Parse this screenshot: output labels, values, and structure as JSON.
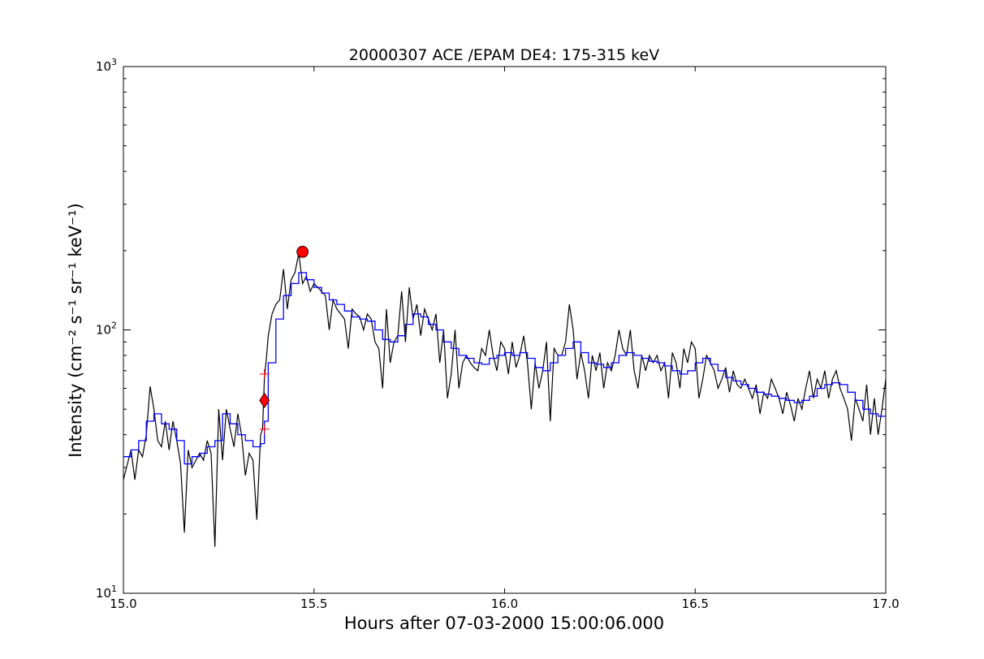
{
  "chart_data": {
    "type": "line",
    "title": "20000307 ACE /EPAM DE4: 175-315 keV",
    "xlabel": "Hours after 07-03-2000 15:00:06.000",
    "ylabel": "Intensity (cm⁻² s⁻¹ sr⁻¹ keV⁻¹)",
    "xlim": [
      15.0,
      17.0
    ],
    "ylim": [
      10,
      1000
    ],
    "yscale": "log",
    "grid": false,
    "x_ticks": [
      "15.0",
      "15.5",
      "16.0",
      "16.5",
      "17.0"
    ],
    "y_ticks": [
      {
        "base": "10",
        "exp": "1",
        "value": 10
      },
      {
        "base": "10",
        "exp": "2",
        "value": 100
      },
      {
        "base": "10",
        "exp": "3",
        "value": 1000
      }
    ],
    "colors": {
      "raw": "#000000",
      "smoothed": "#0000ff",
      "markers": "#ff0000"
    },
    "raw_series": [
      [
        15.0,
        27
      ],
      [
        15.02,
        35
      ],
      [
        15.03,
        27
      ],
      [
        15.04,
        35
      ],
      [
        15.05,
        33
      ],
      [
        15.06,
        40
      ],
      [
        15.07,
        61
      ],
      [
        15.08,
        50
      ],
      [
        15.09,
        38
      ],
      [
        15.1,
        36
      ],
      [
        15.11,
        45
      ],
      [
        15.12,
        35
      ],
      [
        15.13,
        45
      ],
      [
        15.14,
        38
      ],
      [
        15.15,
        31
      ],
      [
        15.16,
        17
      ],
      [
        15.17,
        35
      ],
      [
        15.18,
        30
      ],
      [
        15.2,
        34
      ],
      [
        15.21,
        32
      ],
      [
        15.22,
        38
      ],
      [
        15.23,
        34
      ],
      [
        15.24,
        15
      ],
      [
        15.25,
        50
      ],
      [
        15.26,
        32
      ],
      [
        15.27,
        50
      ],
      [
        15.28,
        42
      ],
      [
        15.29,
        36
      ],
      [
        15.3,
        48
      ],
      [
        15.31,
        40
      ],
      [
        15.32,
        28
      ],
      [
        15.33,
        34
      ],
      [
        15.34,
        32
      ],
      [
        15.35,
        19
      ],
      [
        15.36,
        40
      ],
      [
        15.365,
        42
      ],
      [
        15.37,
        66
      ],
      [
        15.375,
        78
      ],
      [
        15.38,
        95
      ],
      [
        15.39,
        115
      ],
      [
        15.4,
        125
      ],
      [
        15.41,
        130
      ],
      [
        15.42,
        170
      ],
      [
        15.43,
        120
      ],
      [
        15.44,
        155
      ],
      [
        15.45,
        165
      ],
      [
        15.46,
        195
      ],
      [
        15.47,
        150
      ],
      [
        15.48,
        160
      ],
      [
        15.49,
        140
      ],
      [
        15.5,
        150
      ],
      [
        15.51,
        145
      ],
      [
        15.52,
        140
      ],
      [
        15.53,
        135
      ],
      [
        15.54,
        100
      ],
      [
        15.55,
        130
      ],
      [
        15.56,
        120
      ],
      [
        15.57,
        115
      ],
      [
        15.58,
        110
      ],
      [
        15.59,
        85
      ],
      [
        15.6,
        120
      ],
      [
        15.61,
        115
      ],
      [
        15.62,
        112
      ],
      [
        15.63,
        100
      ],
      [
        15.64,
        115
      ],
      [
        15.65,
        110
      ],
      [
        15.66,
        90
      ],
      [
        15.67,
        85
      ],
      [
        15.68,
        60
      ],
      [
        15.69,
        120
      ],
      [
        15.7,
        75
      ],
      [
        15.71,
        90
      ],
      [
        15.72,
        95
      ],
      [
        15.73,
        140
      ],
      [
        15.74,
        90
      ],
      [
        15.75,
        145
      ],
      [
        15.76,
        110
      ],
      [
        15.77,
        125
      ],
      [
        15.78,
        95
      ],
      [
        15.79,
        120
      ],
      [
        15.8,
        110
      ],
      [
        15.81,
        100
      ],
      [
        15.82,
        115
      ],
      [
        15.83,
        75
      ],
      [
        15.84,
        100
      ],
      [
        15.85,
        55
      ],
      [
        15.86,
        68
      ],
      [
        15.87,
        100
      ],
      [
        15.88,
        60
      ],
      [
        15.89,
        75
      ],
      [
        15.9,
        80
      ],
      [
        15.91,
        75
      ],
      [
        15.92,
        72
      ],
      [
        15.93,
        70
      ],
      [
        15.94,
        85
      ],
      [
        15.95,
        80
      ],
      [
        15.96,
        100
      ],
      [
        15.97,
        80
      ],
      [
        15.98,
        70
      ],
      [
        15.99,
        90
      ],
      [
        16.0,
        85
      ],
      [
        16.01,
        68
      ],
      [
        16.02,
        90
      ],
      [
        16.03,
        72
      ],
      [
        16.04,
        80
      ],
      [
        16.05,
        95
      ],
      [
        16.06,
        75
      ],
      [
        16.07,
        50
      ],
      [
        16.08,
        75
      ],
      [
        16.09,
        60
      ],
      [
        16.1,
        70
      ],
      [
        16.11,
        90
      ],
      [
        16.12,
        45
      ],
      [
        16.13,
        85
      ],
      [
        16.14,
        80
      ],
      [
        16.15,
        80
      ],
      [
        16.16,
        90
      ],
      [
        16.17,
        125
      ],
      [
        16.18,
        100
      ],
      [
        16.19,
        65
      ],
      [
        16.2,
        82
      ],
      [
        16.21,
        70
      ],
      [
        16.22,
        55
      ],
      [
        16.23,
        80
      ],
      [
        16.24,
        70
      ],
      [
        16.25,
        82
      ],
      [
        16.26,
        60
      ],
      [
        16.27,
        75
      ],
      [
        16.28,
        70
      ],
      [
        16.29,
        80
      ],
      [
        16.3,
        100
      ],
      [
        16.31,
        85
      ],
      [
        16.32,
        80
      ],
      [
        16.33,
        100
      ],
      [
        16.34,
        70
      ],
      [
        16.35,
        60
      ],
      [
        16.36,
        80
      ],
      [
        16.37,
        70
      ],
      [
        16.38,
        80
      ],
      [
        16.39,
        75
      ],
      [
        16.4,
        80
      ],
      [
        16.41,
        70
      ],
      [
        16.42,
        75
      ],
      [
        16.43,
        55
      ],
      [
        16.44,
        82
      ],
      [
        16.45,
        75
      ],
      [
        16.46,
        60
      ],
      [
        16.47,
        85
      ],
      [
        16.48,
        75
      ],
      [
        16.49,
        90
      ],
      [
        16.5,
        85
      ],
      [
        16.51,
        55
      ],
      [
        16.52,
        65
      ],
      [
        16.53,
        80
      ],
      [
        16.54,
        75
      ],
      [
        16.55,
        70
      ],
      [
        16.56,
        60
      ],
      [
        16.57,
        65
      ],
      [
        16.58,
        72
      ],
      [
        16.59,
        58
      ],
      [
        16.6,
        70
      ],
      [
        16.61,
        62
      ],
      [
        16.62,
        60
      ],
      [
        16.63,
        65
      ],
      [
        16.64,
        60
      ],
      [
        16.65,
        55
      ],
      [
        16.66,
        62
      ],
      [
        16.67,
        48
      ],
      [
        16.68,
        58
      ],
      [
        16.69,
        55
      ],
      [
        16.7,
        65
      ],
      [
        16.71,
        60
      ],
      [
        16.72,
        55
      ],
      [
        16.73,
        48
      ],
      [
        16.74,
        58
      ],
      [
        16.75,
        52
      ],
      [
        16.76,
        45
      ],
      [
        16.77,
        55
      ],
      [
        16.78,
        50
      ],
      [
        16.79,
        60
      ],
      [
        16.8,
        70
      ],
      [
        16.81,
        55
      ],
      [
        16.82,
        65
      ],
      [
        16.83,
        60
      ],
      [
        16.84,
        70
      ],
      [
        16.85,
        55
      ],
      [
        16.86,
        65
      ],
      [
        16.87,
        70
      ],
      [
        16.88,
        60
      ],
      [
        16.89,
        55
      ],
      [
        16.9,
        50
      ],
      [
        16.91,
        38
      ],
      [
        16.92,
        55
      ],
      [
        16.93,
        50
      ],
      [
        16.94,
        45
      ],
      [
        16.95,
        62
      ],
      [
        16.96,
        40
      ],
      [
        16.97,
        55
      ],
      [
        16.98,
        40
      ],
      [
        16.99,
        50
      ],
      [
        17.0,
        65
      ]
    ],
    "smoothed_series": [
      [
        15.0,
        33
      ],
      [
        15.02,
        35
      ],
      [
        15.04,
        38
      ],
      [
        15.06,
        45
      ],
      [
        15.08,
        48
      ],
      [
        15.1,
        44
      ],
      [
        15.12,
        42
      ],
      [
        15.14,
        38
      ],
      [
        15.16,
        31
      ],
      [
        15.18,
        33
      ],
      [
        15.2,
        34
      ],
      [
        15.22,
        36
      ],
      [
        15.24,
        38
      ],
      [
        15.26,
        48
      ],
      [
        15.28,
        44
      ],
      [
        15.3,
        40
      ],
      [
        15.32,
        38
      ],
      [
        15.34,
        36
      ],
      [
        15.36,
        37
      ],
      [
        15.37,
        45
      ],
      [
        15.38,
        75
      ],
      [
        15.4,
        110
      ],
      [
        15.42,
        135
      ],
      [
        15.44,
        150
      ],
      [
        15.46,
        165
      ],
      [
        15.48,
        155
      ],
      [
        15.5,
        145
      ],
      [
        15.52,
        138
      ],
      [
        15.54,
        130
      ],
      [
        15.56,
        125
      ],
      [
        15.58,
        118
      ],
      [
        15.6,
        112
      ],
      [
        15.62,
        110
      ],
      [
        15.64,
        108
      ],
      [
        15.66,
        100
      ],
      [
        15.68,
        92
      ],
      [
        15.7,
        90
      ],
      [
        15.72,
        95
      ],
      [
        15.74,
        105
      ],
      [
        15.76,
        115
      ],
      [
        15.78,
        112
      ],
      [
        15.8,
        105
      ],
      [
        15.82,
        100
      ],
      [
        15.84,
        90
      ],
      [
        15.86,
        85
      ],
      [
        15.88,
        80
      ],
      [
        15.9,
        78
      ],
      [
        15.92,
        75
      ],
      [
        15.94,
        74
      ],
      [
        15.96,
        78
      ],
      [
        15.98,
        80
      ],
      [
        16.0,
        82
      ],
      [
        16.02,
        80
      ],
      [
        16.04,
        82
      ],
      [
        16.06,
        78
      ],
      [
        16.08,
        72
      ],
      [
        16.1,
        70
      ],
      [
        16.12,
        75
      ],
      [
        16.14,
        80
      ],
      [
        16.16,
        85
      ],
      [
        16.18,
        90
      ],
      [
        16.2,
        82
      ],
      [
        16.22,
        75
      ],
      [
        16.24,
        74
      ],
      [
        16.26,
        72
      ],
      [
        16.28,
        75
      ],
      [
        16.3,
        80
      ],
      [
        16.32,
        82
      ],
      [
        16.34,
        80
      ],
      [
        16.36,
        78
      ],
      [
        16.38,
        76
      ],
      [
        16.4,
        75
      ],
      [
        16.42,
        73
      ],
      [
        16.44,
        70
      ],
      [
        16.46,
        68
      ],
      [
        16.48,
        70
      ],
      [
        16.5,
        75
      ],
      [
        16.52,
        78
      ],
      [
        16.54,
        74
      ],
      [
        16.56,
        70
      ],
      [
        16.58,
        66
      ],
      [
        16.6,
        64
      ],
      [
        16.62,
        62
      ],
      [
        16.64,
        60
      ],
      [
        16.66,
        58
      ],
      [
        16.68,
        57
      ],
      [
        16.7,
        56
      ],
      [
        16.72,
        55
      ],
      [
        16.74,
        54
      ],
      [
        16.76,
        53
      ],
      [
        16.78,
        54
      ],
      [
        16.8,
        56
      ],
      [
        16.82,
        60
      ],
      [
        16.84,
        62
      ],
      [
        16.86,
        63
      ],
      [
        16.88,
        62
      ],
      [
        16.9,
        58
      ],
      [
        16.92,
        54
      ],
      [
        16.94,
        50
      ],
      [
        16.96,
        48
      ],
      [
        16.98,
        47
      ],
      [
        17.0,
        48
      ]
    ],
    "onset_range_markers": [
      [
        15.37,
        42
      ],
      [
        15.37,
        68
      ]
    ],
    "onset_marker": [
      15.37,
      54
    ],
    "peak_marker": [
      15.47,
      198
    ]
  }
}
